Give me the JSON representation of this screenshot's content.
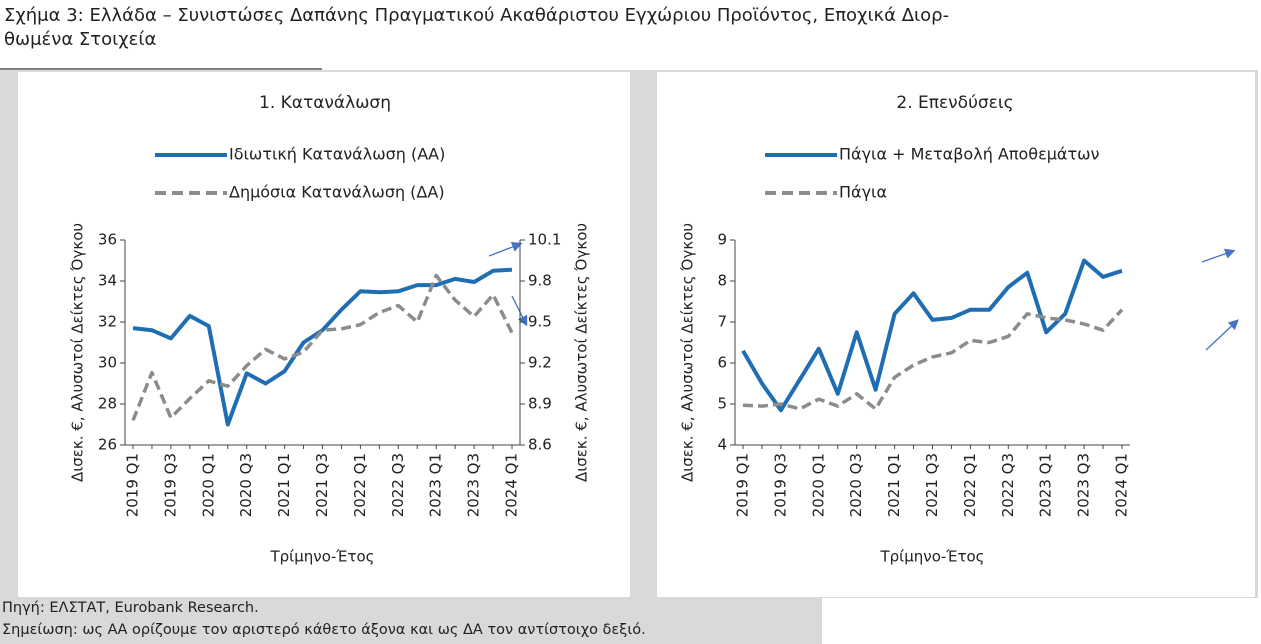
{
  "figure": {
    "title_lines": [
      "Σχήμα 3: Ελλάδα – Συνιστώσες Δαπάνης Πραγματικού Ακαθάριστου Εγχώριου Προϊόντος, Εποχικά Διορ-",
      "θωμένα Στοιχεία"
    ],
    "source": "Πηγή: ΕΛΣΤΑΤ, Eurobank Research.",
    "note": "Σημείωση: ως ΑΑ ορίζουμε τον αριστερό κάθετο άξονα και ως ΔΑ τον αντίστοιχο δεξιό."
  },
  "chart_data": [
    {
      "type": "line",
      "title": "1. Κατανάλωση",
      "xlabel": "Τρίμηνο-Έτος",
      "ylabel": "Δισεκ. €, Αλυσωτοί Δείκτες Όγκου",
      "y2label": "Δισεκ. €, Αλυσωτοί Δείκτες Όγκου",
      "categories": [
        "2019 Q1",
        null,
        "2019 Q3",
        null,
        "2020 Q1",
        null,
        "2020 Q3",
        null,
        "2021 Q1",
        null,
        "2021 Q3",
        null,
        "2022 Q1",
        null,
        "2022 Q3",
        null,
        "2023 Q1",
        null,
        "2023 Q3",
        null,
        "2024 Q1"
      ],
      "ylim": [
        26,
        36
      ],
      "yticks": [
        26,
        28,
        30,
        32,
        34,
        36
      ],
      "y2lim": [
        8.6,
        10.1
      ],
      "y2ticks": [
        8.6,
        8.9,
        9.2,
        9.5,
        9.8,
        10.1
      ],
      "series": [
        {
          "name": "Ιδιωτική Κατανάλωση (ΑΑ)",
          "color": "#1f6db3",
          "dash": false,
          "axis": "y",
          "values": [
            31.7,
            31.6,
            31.2,
            32.3,
            31.8,
            27.0,
            29.5,
            29.0,
            29.6,
            31.0,
            31.6,
            32.6,
            33.5,
            33.45,
            33.5,
            33.8,
            33.8,
            34.1,
            33.95,
            34.5,
            34.55
          ]
        },
        {
          "name": "Δημόσια Κατανάλωση (ΔΑ)",
          "color": "#8c8c8c",
          "dash": true,
          "axis": "y2",
          "values": [
            8.78,
            9.13,
            8.8,
            8.94,
            9.07,
            9.03,
            9.18,
            9.3,
            9.23,
            9.28,
            9.44,
            9.45,
            9.48,
            9.57,
            9.62,
            9.5,
            9.84,
            9.66,
            9.54,
            9.7,
            9.42
          ]
        }
      ]
    },
    {
      "type": "line",
      "title": "2. Επενδύσεις",
      "xlabel": "Τρίμηνο-Έτος",
      "ylabel": "Δισεκ. €, Αλυσωτοί Δείκτες Όγκου",
      "categories": [
        "2019 Q1",
        null,
        "2019 Q3",
        null,
        "2020 Q1",
        null,
        "2020 Q3",
        null,
        "2021 Q1",
        null,
        "2021 Q3",
        null,
        "2022 Q1",
        null,
        "2022 Q3",
        null,
        "2023 Q1",
        null,
        "2023 Q3",
        null,
        "2024 Q1"
      ],
      "ylim": [
        4,
        9
      ],
      "yticks": [
        4,
        5,
        6,
        7,
        8,
        9
      ],
      "series": [
        {
          "name": "Πάγια + Μεταβολή Αποθεμάτων",
          "color": "#1f6db3",
          "dash": false,
          "axis": "y",
          "values": [
            6.3,
            5.5,
            4.85,
            5.6,
            6.35,
            5.25,
            6.75,
            5.35,
            7.2,
            7.7,
            7.05,
            7.1,
            7.3,
            7.3,
            7.85,
            8.2,
            6.75,
            7.2,
            8.5,
            8.1,
            8.25
          ]
        },
        {
          "name": "Πάγια",
          "color": "#8c8c8c",
          "dash": true,
          "axis": "y",
          "values": [
            4.97,
            4.95,
            5.0,
            4.88,
            5.12,
            4.95,
            5.25,
            4.88,
            5.65,
            5.95,
            6.15,
            6.25,
            6.55,
            6.5,
            6.65,
            7.2,
            7.1,
            7.05,
            6.95,
            6.8,
            7.3
          ]
        }
      ]
    }
  ]
}
